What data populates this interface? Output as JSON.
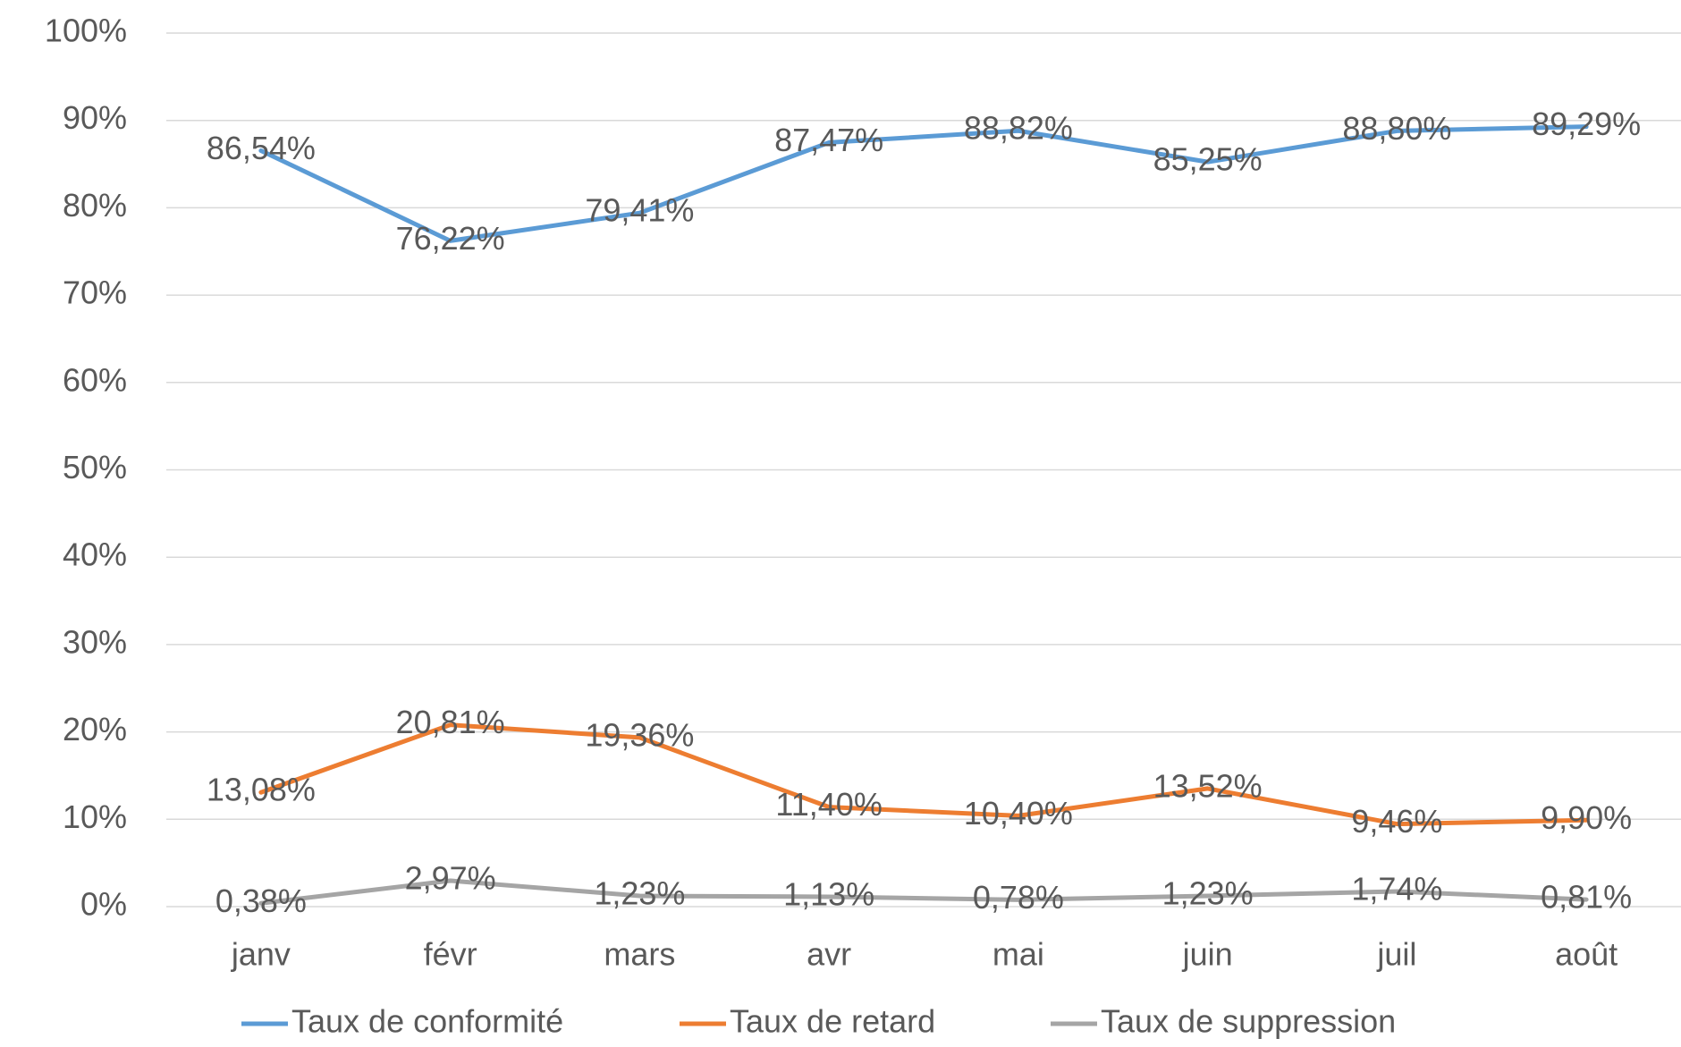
{
  "chart_data": {
    "type": "line",
    "categories": [
      "janv",
      "févr",
      "mars",
      "avr",
      "mai",
      "juin",
      "juil",
      "août"
    ],
    "series": [
      {
        "name": "Taux de conformité",
        "color": "#5b9bd5",
        "values": [
          86.54,
          76.22,
          79.41,
          87.47,
          88.82,
          85.25,
          88.8,
          89.29
        ],
        "value_labels": [
          "86,54%",
          "76,22%",
          "79,41%",
          "87,47%",
          "88,82%",
          "85,25%",
          "88,80%",
          "89,29%"
        ]
      },
      {
        "name": "Taux de retard",
        "color": "#ed7d31",
        "values": [
          13.08,
          20.81,
          19.36,
          11.4,
          10.4,
          13.52,
          9.46,
          9.9
        ],
        "value_labels": [
          "13,08%",
          "20,81%",
          "19,36%",
          "11,40%",
          "10,40%",
          "13,52%",
          "9,46%",
          "9,90%"
        ]
      },
      {
        "name": "Taux de suppression",
        "color": "#a5a5a5",
        "values": [
          0.38,
          2.97,
          1.23,
          1.13,
          0.78,
          1.23,
          1.74,
          0.81
        ],
        "value_labels": [
          "0,38%",
          "2,97%",
          "1,23%",
          "1,13%",
          "0,78%",
          "1,23%",
          "1,74%",
          "0,81%"
        ]
      }
    ],
    "ylim": [
      0,
      100
    ],
    "yticks": [
      {
        "value": 0,
        "label": "0%"
      },
      {
        "value": 10,
        "label": "10%"
      },
      {
        "value": 20,
        "label": "20%"
      },
      {
        "value": 30,
        "label": "30%"
      },
      {
        "value": 40,
        "label": "40%"
      },
      {
        "value": 50,
        "label": "50%"
      },
      {
        "value": 60,
        "label": "60%"
      },
      {
        "value": 70,
        "label": "70%"
      },
      {
        "value": 80,
        "label": "80%"
      },
      {
        "value": 90,
        "label": "90%"
      },
      {
        "value": 100,
        "label": "100%"
      }
    ],
    "grid": true,
    "legend": "bottom"
  }
}
